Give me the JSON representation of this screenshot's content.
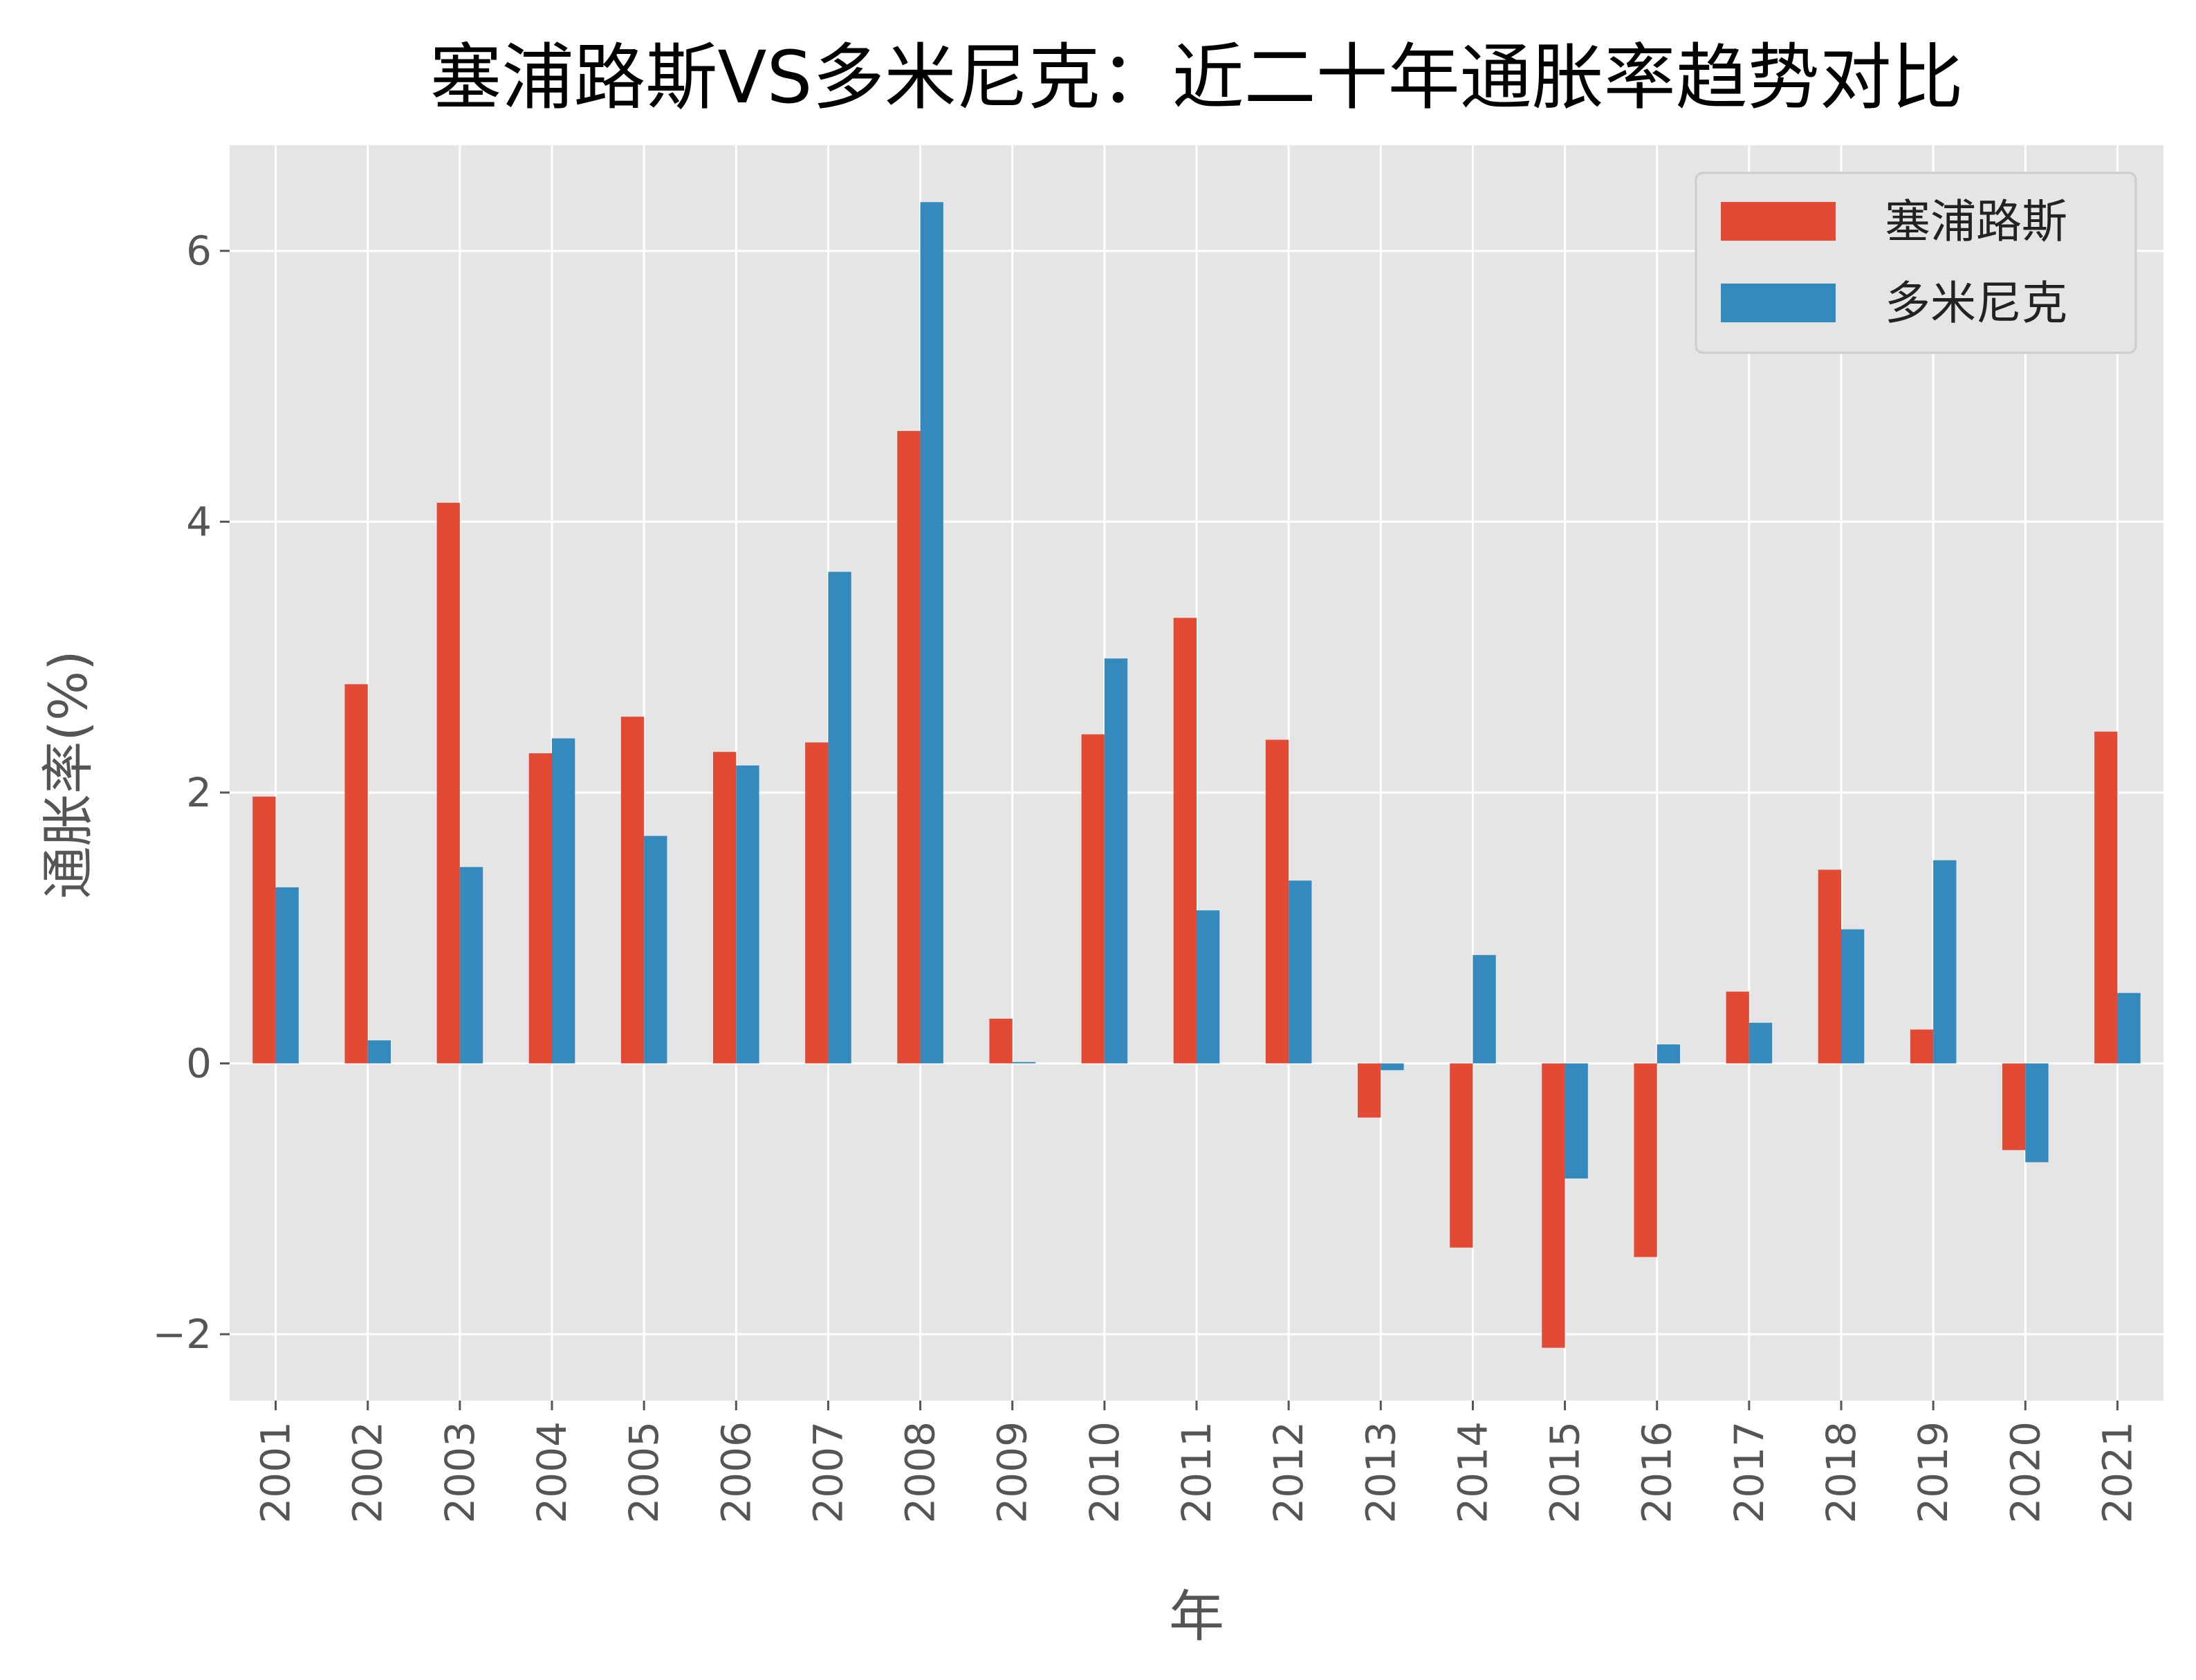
{
  "chart_data": {
    "type": "bar",
    "title": "塞浦路斯VS多米尼克：近二十年通胀率趋势对比",
    "xlabel": "年",
    "ylabel": "通胀率(%)",
    "ylim": [
      -2.49,
      6.78
    ],
    "yticks": [
      -2,
      0,
      2,
      4,
      6
    ],
    "ytick_labels": [
      "−2",
      "0",
      "2",
      "4",
      "6"
    ],
    "grid": true,
    "legend_position": "top-right",
    "categories": [
      "2001",
      "2002",
      "2003",
      "2004",
      "2005",
      "2006",
      "2007",
      "2008",
      "2009",
      "2010",
      "2011",
      "2012",
      "2013",
      "2014",
      "2015",
      "2016",
      "2017",
      "2018",
      "2019",
      "2020",
      "2021"
    ],
    "series": [
      {
        "name": "塞浦路斯",
        "color": "#E24A33",
        "values": [
          1.97,
          2.8,
          4.14,
          2.29,
          2.56,
          2.3,
          2.37,
          4.67,
          0.33,
          2.43,
          3.29,
          2.39,
          -0.4,
          -1.36,
          -2.1,
          -1.43,
          0.53,
          1.43,
          0.25,
          -0.64,
          2.45
        ]
      },
      {
        "name": "多米尼克",
        "color": "#348ABD",
        "values": [
          1.3,
          0.17,
          1.45,
          2.4,
          1.68,
          2.2,
          3.63,
          6.36,
          0.01,
          2.99,
          1.13,
          1.35,
          -0.05,
          0.8,
          -0.85,
          0.14,
          0.3,
          0.99,
          1.5,
          -0.73,
          0.52
        ]
      }
    ],
    "background_color": "#E5E5E5"
  }
}
